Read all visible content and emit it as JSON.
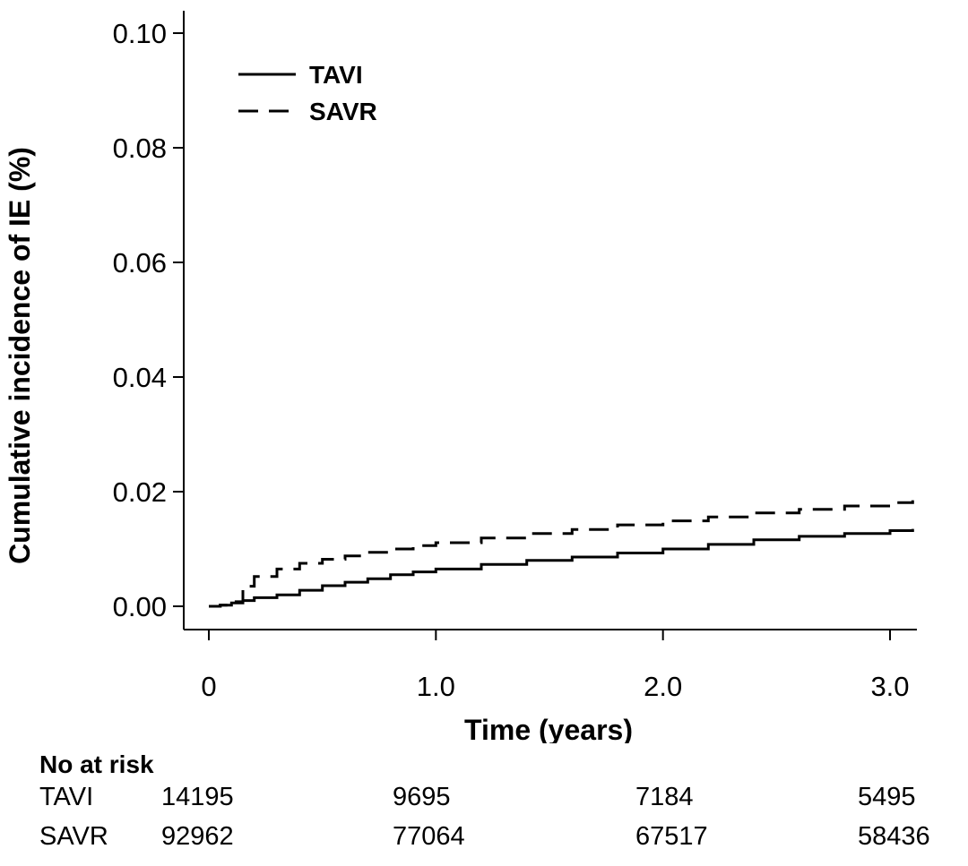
{
  "chart_data": {
    "type": "line",
    "title": "",
    "xlabel": "Time (years)",
    "ylabel": "Cumulative incidence of IE (%)",
    "xlim": [
      0,
      3.1
    ],
    "ylim": [
      0,
      0.1
    ],
    "x_ticks": [
      0,
      1.0,
      2.0,
      3.0
    ],
    "x_tick_labels": [
      "0",
      "1.0",
      "2.0",
      "3.0"
    ],
    "y_ticks": [
      0,
      0.02,
      0.04,
      0.06,
      0.08,
      0.1
    ],
    "y_tick_labels": [
      "0.00",
      "0.02",
      "0.04",
      "0.06",
      "0.08",
      "0.10"
    ],
    "legend_position": "top-left",
    "series": [
      {
        "name": "TAVI",
        "style": "solid",
        "x": [
          0,
          0.05,
          0.1,
          0.15,
          0.2,
          0.3,
          0.4,
          0.5,
          0.6,
          0.7,
          0.8,
          0.9,
          1.0,
          1.2,
          1.4,
          1.6,
          1.8,
          2.0,
          2.2,
          2.4,
          2.6,
          2.8,
          3.0,
          3.1
        ],
        "y": [
          0,
          0.0002,
          0.0006,
          0.001,
          0.0015,
          0.002,
          0.0028,
          0.0036,
          0.0042,
          0.0048,
          0.0055,
          0.006,
          0.0065,
          0.0073,
          0.008,
          0.0086,
          0.0093,
          0.01,
          0.0108,
          0.0116,
          0.0122,
          0.0127,
          0.0132,
          0.0135
        ]
      },
      {
        "name": "SAVR",
        "style": "dashed",
        "x": [
          0,
          0.05,
          0.1,
          0.15,
          0.2,
          0.3,
          0.4,
          0.5,
          0.6,
          0.7,
          0.8,
          0.9,
          1.0,
          1.2,
          1.4,
          1.6,
          1.8,
          2.0,
          2.2,
          2.4,
          2.6,
          2.8,
          3.0,
          3.1
        ],
        "y": [
          0,
          0.0002,
          0.0008,
          0.0035,
          0.0052,
          0.0065,
          0.0075,
          0.0082,
          0.0088,
          0.0094,
          0.01,
          0.0106,
          0.0111,
          0.0119,
          0.0127,
          0.0134,
          0.0142,
          0.0149,
          0.0156,
          0.0163,
          0.0169,
          0.0175,
          0.0181,
          0.0185
        ]
      }
    ]
  },
  "risk_table": {
    "title": "No at risk",
    "rows": [
      {
        "group": "TAVI",
        "values": [
          "14195",
          "9695",
          "7184",
          "5495"
        ]
      },
      {
        "group": "SAVR",
        "values": [
          "92962",
          "77064",
          "67517",
          "58436"
        ]
      }
    ]
  }
}
